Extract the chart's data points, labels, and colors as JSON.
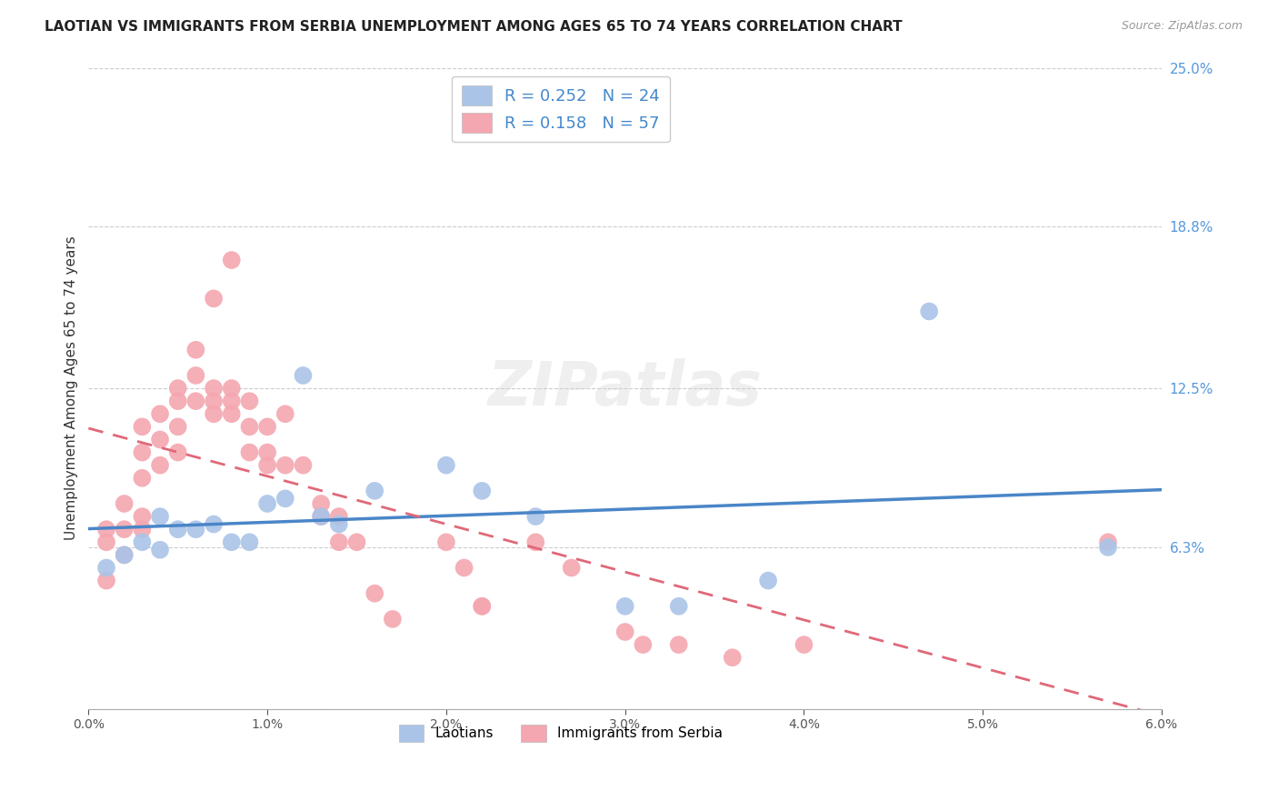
{
  "title": "LAOTIAN VS IMMIGRANTS FROM SERBIA UNEMPLOYMENT AMONG AGES 65 TO 74 YEARS CORRELATION CHART",
  "source": "Source: ZipAtlas.com",
  "ylabel": "Unemployment Among Ages 65 to 74 years",
  "xlim": [
    0.0,
    0.06
  ],
  "ylim": [
    0.0,
    0.25
  ],
  "xticks": [
    0.0,
    0.01,
    0.02,
    0.03,
    0.04,
    0.05,
    0.06
  ],
  "yticks_right": [
    0.0,
    0.063,
    0.125,
    0.188,
    0.25
  ],
  "grid_color": "#cccccc",
  "background_color": "#ffffff",
  "laotian_color": "#aac4e8",
  "serbia_color": "#f4a7b0",
  "laotian_R": 0.252,
  "laotian_N": 24,
  "serbia_R": 0.158,
  "serbia_N": 57,
  "laotian_line_color": "#4a86c8",
  "serbia_line_color": "#e06878",
  "legend_label_1": "Laotians",
  "legend_label_2": "Immigrants from Serbia",
  "laotian_x": [
    0.001,
    0.002,
    0.003,
    0.004,
    0.004,
    0.005,
    0.006,
    0.007,
    0.008,
    0.009,
    0.01,
    0.011,
    0.012,
    0.013,
    0.014,
    0.016,
    0.02,
    0.022,
    0.025,
    0.03,
    0.033,
    0.038,
    0.047,
    0.057
  ],
  "laotian_y": [
    0.055,
    0.06,
    0.065,
    0.062,
    0.075,
    0.07,
    0.07,
    0.072,
    0.065,
    0.065,
    0.08,
    0.082,
    0.13,
    0.075,
    0.072,
    0.085,
    0.095,
    0.085,
    0.075,
    0.04,
    0.04,
    0.05,
    0.155,
    0.063
  ],
  "serbia_x": [
    0.001,
    0.001,
    0.001,
    0.002,
    0.002,
    0.002,
    0.003,
    0.003,
    0.003,
    0.003,
    0.003,
    0.004,
    0.004,
    0.004,
    0.005,
    0.005,
    0.005,
    0.005,
    0.006,
    0.006,
    0.006,
    0.007,
    0.007,
    0.007,
    0.007,
    0.008,
    0.008,
    0.008,
    0.008,
    0.009,
    0.009,
    0.009,
    0.01,
    0.01,
    0.01,
    0.011,
    0.011,
    0.012,
    0.013,
    0.013,
    0.014,
    0.014,
    0.015,
    0.016,
    0.017,
    0.02,
    0.021,
    0.022,
    0.022,
    0.025,
    0.027,
    0.03,
    0.031,
    0.033,
    0.036,
    0.04,
    0.057
  ],
  "serbia_y": [
    0.05,
    0.065,
    0.07,
    0.06,
    0.07,
    0.08,
    0.07,
    0.075,
    0.09,
    0.1,
    0.11,
    0.095,
    0.105,
    0.115,
    0.1,
    0.11,
    0.12,
    0.125,
    0.12,
    0.13,
    0.14,
    0.115,
    0.12,
    0.125,
    0.16,
    0.115,
    0.12,
    0.125,
    0.175,
    0.1,
    0.11,
    0.12,
    0.095,
    0.1,
    0.11,
    0.095,
    0.115,
    0.095,
    0.08,
    0.075,
    0.065,
    0.075,
    0.065,
    0.045,
    0.035,
    0.065,
    0.055,
    0.04,
    0.04,
    0.065,
    0.055,
    0.03,
    0.025,
    0.025,
    0.02,
    0.025,
    0.065
  ]
}
